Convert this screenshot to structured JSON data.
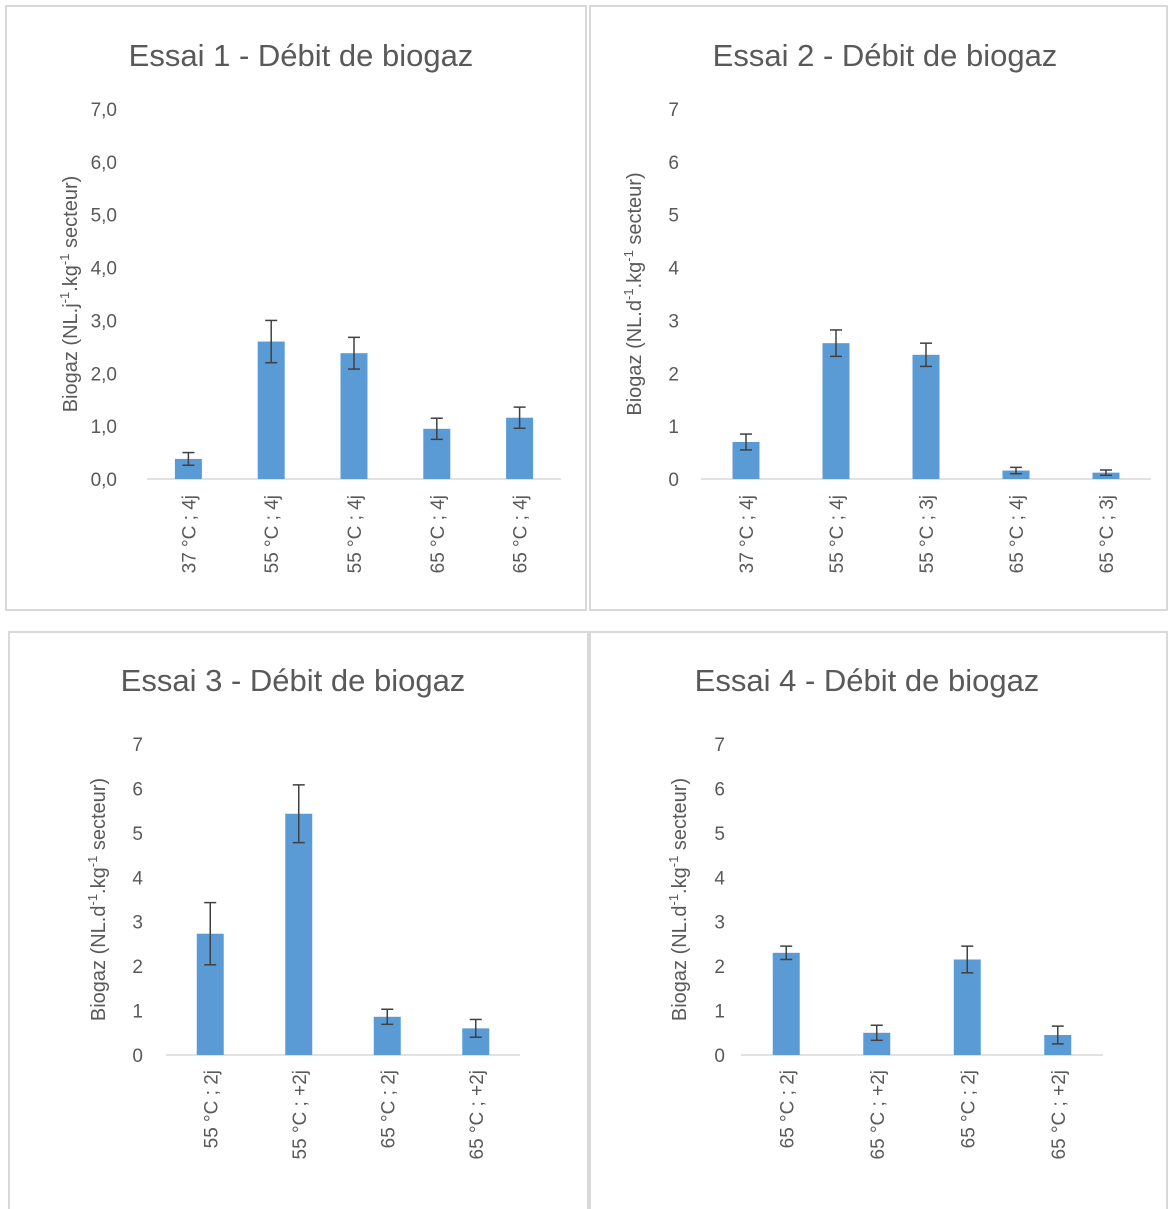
{
  "chart_data": [
    {
      "type": "bar",
      "title": "Essai 1 - Débit de biogaz",
      "ylabel": [
        "Biogaz (NL.j",
        "-1",
        ".kg",
        "-1",
        " secteur)"
      ],
      "yticks": [
        "0,0",
        "1,0",
        "2,0",
        "3,0",
        "4,0",
        "5,0",
        "6,0",
        "7,0"
      ],
      "ylim": [
        0,
        7
      ],
      "categories": [
        "37 °C ; 4j",
        "55 °C ; 4j",
        "55 °C ; 4j",
        "65 °C ; 4j",
        "65 °C ; 4j"
      ],
      "values": [
        0.38,
        2.6,
        2.38,
        0.95,
        1.16
      ],
      "errors": [
        0.12,
        0.4,
        0.3,
        0.2,
        0.2
      ],
      "bar_color": "#5b9bd5",
      "error_color": "#404040",
      "grid": false
    },
    {
      "type": "bar",
      "title": "Essai 2 - Débit de biogaz",
      "ylabel": [
        "Biogaz (NL.d",
        "-1",
        ".kg",
        "-1",
        " secteur)"
      ],
      "yticks": [
        "0",
        "1",
        "2",
        "3",
        "4",
        "5",
        "6",
        "7"
      ],
      "ylim": [
        0,
        7
      ],
      "categories": [
        "37 °C ; 4j",
        "55 °C ; 4j",
        "55 °C ; 3j",
        "65 °C ; 4j",
        "65 °C ; 3j"
      ],
      "values": [
        0.7,
        2.57,
        2.35,
        0.16,
        0.12
      ],
      "errors": [
        0.15,
        0.25,
        0.22,
        0.06,
        0.05
      ],
      "bar_color": "#5b9bd5",
      "error_color": "#404040",
      "grid": false
    },
    {
      "type": "bar",
      "title": "Essai 3 - Débit de biogaz",
      "ylabel": [
        "Biogaz (NL.d",
        "-1",
        ".kg",
        "-1",
        " secteur)"
      ],
      "yticks": [
        "0",
        "1",
        "2",
        "3",
        "4",
        "5",
        "6",
        "7"
      ],
      "ylim": [
        0,
        7
      ],
      "categories": [
        "55 °C ; 2j",
        "55 °C ; +2j",
        "65 °C ; 2j",
        "65 °C ; +2j"
      ],
      "values": [
        2.73,
        5.43,
        0.86,
        0.6
      ],
      "errors": [
        0.7,
        0.65,
        0.17,
        0.2
      ],
      "bar_color": "#5b9bd5",
      "error_color": "#404040",
      "grid": false
    },
    {
      "type": "bar",
      "title": "Essai 4 - Débit de biogaz",
      "ylabel": [
        "Biogaz (NL.d",
        "-1",
        ".kg",
        "-1",
        " secteur)"
      ],
      "yticks": [
        "0",
        "1",
        "2",
        "3",
        "4",
        "5",
        "6",
        "7"
      ],
      "ylim": [
        0,
        7
      ],
      "categories": [
        "65 °C ; 2j",
        "65 °C ; +2j",
        "65 °C ; 2j",
        "65 °C ; +2j"
      ],
      "values": [
        2.3,
        0.5,
        2.15,
        0.45
      ],
      "errors": [
        0.15,
        0.17,
        0.3,
        0.2
      ],
      "bar_color": "#5b9bd5",
      "error_color": "#404040",
      "grid": false
    }
  ]
}
